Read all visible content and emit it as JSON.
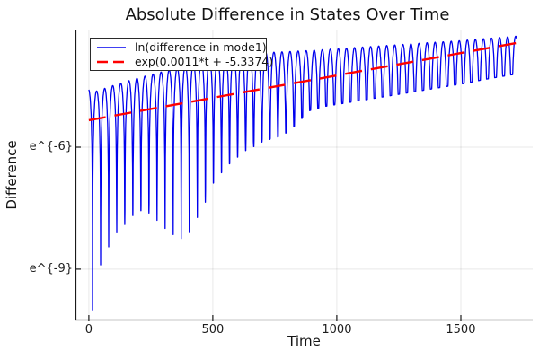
{
  "chart_data": {
    "type": "line",
    "title": "Absolute Difference in States Over Time",
    "xlabel": "Time",
    "ylabel": "Difference",
    "y_scale": "ln",
    "grid": true,
    "legend_position": "top-left",
    "xlim": [
      -54,
      1790
    ],
    "ylim_ln": [
      -10.26,
      -3.11
    ],
    "x_ticks": [
      {
        "value": 0,
        "label": "0"
      },
      {
        "value": 500,
        "label": "500"
      },
      {
        "value": 1000,
        "label": "1000"
      },
      {
        "value": 1500,
        "label": "1500"
      }
    ],
    "y_ticks": [
      {
        "value": -6,
        "label": "e^{-6}"
      },
      {
        "value": -9,
        "label": "e^{-9}"
      }
    ],
    "colors": {
      "curve": "#0000ee",
      "fit": "#ff0000",
      "grid": "#000000",
      "axis": "#1a1a1a"
    },
    "series": [
      {
        "name": "ln(difference in mode1)",
        "color": "#0000ee",
        "style": "solid",
        "t_start": 0,
        "t_end": 1725,
        "oscillation_period": 32.5,
        "first_dip_t": 15,
        "peak_envelope_ln": [
          [
            0,
            -4.58
          ],
          [
            31,
            -4.62
          ],
          [
            100,
            -4.48
          ],
          [
            180,
            -4.33
          ],
          [
            260,
            -4.2
          ],
          [
            340,
            -4.08
          ],
          [
            420,
            -3.95
          ],
          [
            500,
            -3.84
          ],
          [
            582,
            -3.74
          ],
          [
            700,
            -3.68
          ],
          [
            800,
            -3.65
          ],
          [
            900,
            -3.62
          ],
          [
            1000,
            -3.58
          ],
          [
            1100,
            -3.54
          ],
          [
            1200,
            -3.5
          ],
          [
            1300,
            -3.46
          ],
          [
            1400,
            -3.42
          ],
          [
            1500,
            -3.38
          ],
          [
            1600,
            -3.33
          ],
          [
            1725,
            -3.27
          ]
        ],
        "dip_envelope_ln": [
          [
            15,
            -10.0
          ],
          [
            47,
            -8.9
          ],
          [
            80,
            -8.45
          ],
          [
            113,
            -8.1
          ],
          [
            145,
            -7.9
          ],
          [
            178,
            -7.68
          ],
          [
            210,
            -7.56
          ],
          [
            243,
            -7.62
          ],
          [
            275,
            -7.8
          ],
          [
            308,
            -8.0
          ],
          [
            340,
            -8.15
          ],
          [
            373,
            -8.25
          ],
          [
            405,
            -8.1
          ],
          [
            431,
            -7.8
          ],
          [
            467,
            -7.4
          ],
          [
            500,
            -6.9
          ],
          [
            533,
            -6.64
          ],
          [
            565,
            -6.42
          ],
          [
            601,
            -6.24
          ],
          [
            630,
            -6.09
          ],
          [
            667,
            -5.98
          ],
          [
            699,
            -5.87
          ],
          [
            735,
            -5.8
          ],
          [
            772,
            -5.73
          ],
          [
            810,
            -5.6
          ],
          [
            850,
            -5.35
          ],
          [
            891,
            -5.1
          ],
          [
            950,
            -5.0
          ],
          [
            1000,
            -4.95
          ],
          [
            1100,
            -4.85
          ],
          [
            1200,
            -4.75
          ],
          [
            1300,
            -4.65
          ],
          [
            1400,
            -4.55
          ],
          [
            1500,
            -4.45
          ],
          [
            1600,
            -4.33
          ],
          [
            1725,
            -4.2
          ]
        ]
      },
      {
        "name": "exp(0.0011*t + -5.3374)",
        "color": "#ff0000",
        "style": "dashed",
        "fit_slope": 0.0011,
        "fit_intercept": -5.3374,
        "t_start": 0,
        "t_end": 1725
      }
    ]
  }
}
